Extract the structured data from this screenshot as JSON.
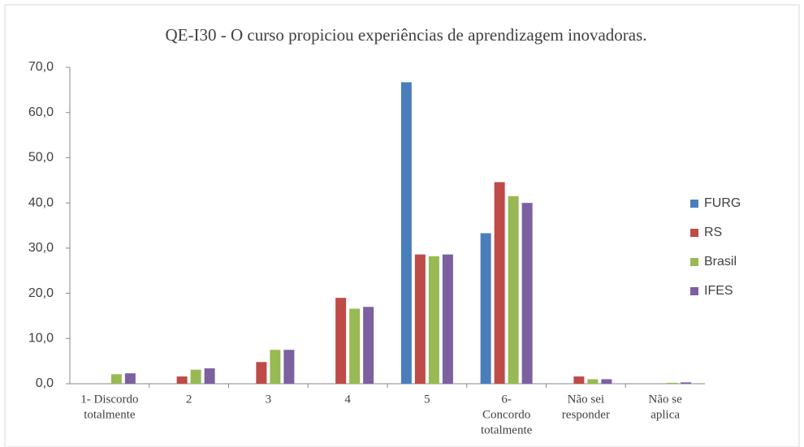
{
  "chart_data": {
    "type": "bar",
    "title": "QE-I30 - O curso propiciou experiências de aprendizagem inovadoras.",
    "categories": [
      [
        "1- Discordo",
        "totalmente"
      ],
      [
        "2"
      ],
      [
        "3"
      ],
      [
        "4"
      ],
      [
        "5"
      ],
      [
        "6-",
        "Concordo",
        "totalmente"
      ],
      [
        "Não sei",
        "responder"
      ],
      [
        "Não se",
        "aplica"
      ]
    ],
    "series": [
      {
        "name": "FURG",
        "color": "#4a7ebb",
        "values": [
          0,
          0,
          0,
          0,
          66.7,
          33.3,
          0,
          0
        ]
      },
      {
        "name": "RS",
        "color": "#be4b48",
        "values": [
          0,
          1.6,
          4.8,
          19.0,
          28.6,
          44.6,
          1.6,
          0
        ]
      },
      {
        "name": "Brasil",
        "color": "#98b954",
        "values": [
          2.1,
          3.1,
          7.5,
          16.6,
          28.2,
          41.5,
          1.0,
          0.2
        ]
      },
      {
        "name": "IFES",
        "color": "#7d60a0",
        "values": [
          2.3,
          3.4,
          7.5,
          17.0,
          28.6,
          40.0,
          1.0,
          0.3
        ]
      }
    ],
    "ylim": [
      0,
      70
    ],
    "yticks": [
      {
        "value": 0,
        "label": "0,0"
      },
      {
        "value": 10,
        "label": "10,0"
      },
      {
        "value": 20,
        "label": "20,0"
      },
      {
        "value": 30,
        "label": "30,0"
      },
      {
        "value": 40,
        "label": "40,0"
      },
      {
        "value": 50,
        "label": "50,0"
      },
      {
        "value": 60,
        "label": "60,0"
      },
      {
        "value": 70,
        "label": "70,0"
      }
    ],
    "legend": "right"
  }
}
